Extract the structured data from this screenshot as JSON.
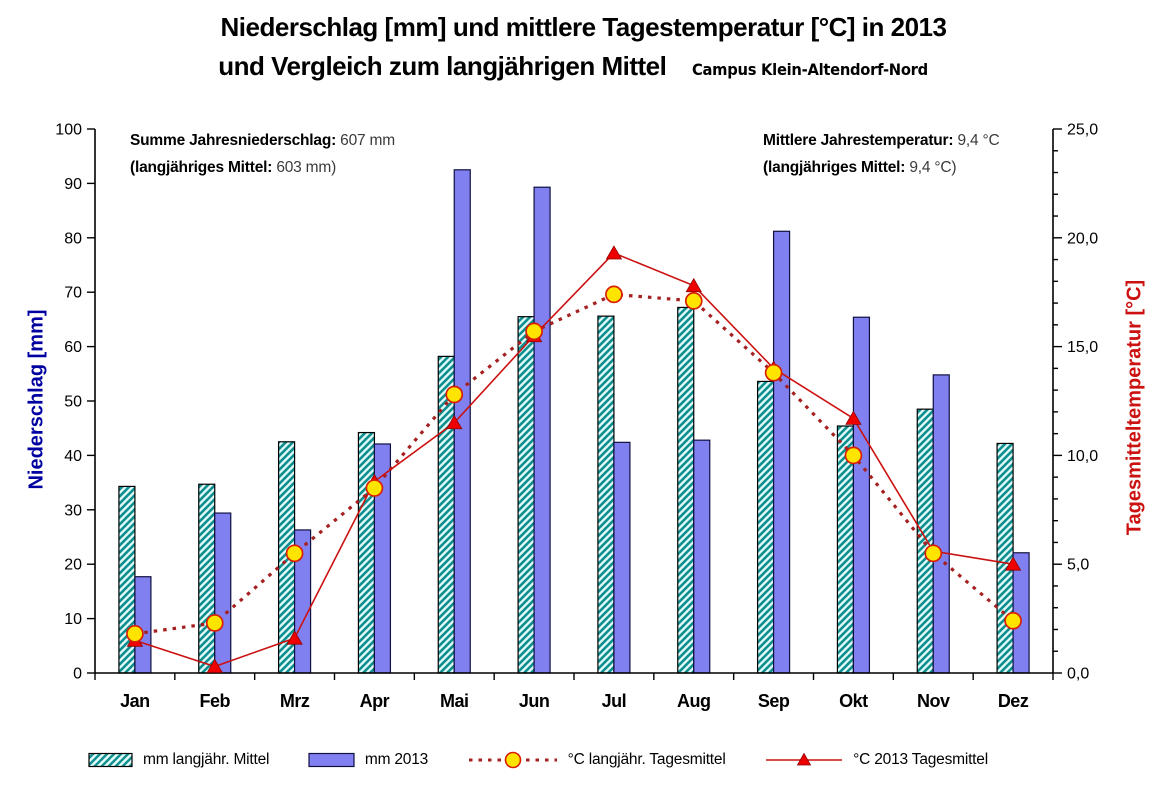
{
  "title": {
    "line1": "Niederschlag [mm] und mittlere Tagestemperatur [°C] in 2013",
    "line2": "und Vergleich zum langjährigen Mittel",
    "site": "Campus Klein-Altendorf-Nord"
  },
  "annotations": {
    "precip_label": "Summe Jahresniederschlag:",
    "precip_value": "607 mm",
    "precip_mean_label": "(langjähriges Mittel:",
    "precip_mean_value": "603 mm)",
    "temp_label": "Mittlere Jahrestemperatur:",
    "temp_value": "9,4 °C",
    "temp_mean_label": "(langjähriges Mittel:",
    "temp_mean_value": "9,4 °C)"
  },
  "axes": {
    "left_label": "Niederschlag [mm]",
    "right_label": "Tagesmitteltemperatur [°C]"
  },
  "legend": {
    "items": [
      {
        "label": "mm langjähr. Mittel",
        "swatch": "hatched-bar"
      },
      {
        "label": "mm 2013",
        "swatch": "blue-bar"
      },
      {
        "label": "°C langjähr. Tagesmittel",
        "swatch": "dotted-line-yellow-circle"
      },
      {
        "label": "°C 2013 Tagesmittel",
        "swatch": "solid-line-red-triangle"
      }
    ]
  },
  "colors": {
    "bar_2013_fill": "#8080f0",
    "bar_2013_border": "#101040",
    "hatch_bg": "#e4fbfb",
    "hatch_stroke": "#0f8f8f",
    "hatch_border": "#000000",
    "line_longterm": "#a52020",
    "marker_longterm_fill": "#ffe400",
    "marker_longterm_stroke": "#d82000",
    "line_2013": "#cc1111",
    "marker_2013_fill": "#ee0000",
    "left_axis_label": "#0000a0",
    "right_axis_label": "#cc1111"
  },
  "chart_data": {
    "type": "bar+line combo (dual axis)",
    "title": "Niederschlag [mm] und mittlere Tagestemperatur [°C] in 2013 und Vergleich zum langjährigen Mittel",
    "categories": [
      "Jan",
      "Feb",
      "Mrz",
      "Apr",
      "Mai",
      "Jun",
      "Jul",
      "Aug",
      "Sep",
      "Okt",
      "Nov",
      "Dez"
    ],
    "series": [
      {
        "name": "mm langjähr. Mittel",
        "type": "bar",
        "style": "teal-hatched",
        "values": [
          34.3,
          34.7,
          42.5,
          44.2,
          58.2,
          65.5,
          65.6,
          67.2,
          53.6,
          45.4,
          48.5,
          42.2
        ]
      },
      {
        "name": "mm 2013",
        "type": "bar",
        "style": "solid-blue",
        "values": [
          17.7,
          29.4,
          26.3,
          42.1,
          92.5,
          89.3,
          42.4,
          42.8,
          81.2,
          65.4,
          54.8,
          22.1
        ]
      },
      {
        "name": "°C langjähr. Tagesmittel",
        "type": "line",
        "style": "dotted-red-yellow-circle",
        "values": [
          1.8,
          2.3,
          5.5,
          8.5,
          12.8,
          15.7,
          17.4,
          17.1,
          13.8,
          10.0,
          5.5,
          2.4
        ]
      },
      {
        "name": "°C 2013 Tagesmittel",
        "type": "line",
        "style": "solid-red-triangle",
        "values": [
          1.5,
          0.3,
          1.6,
          8.8,
          11.5,
          15.5,
          19.3,
          17.8,
          14.0,
          11.7,
          5.6,
          5.0
        ]
      }
    ],
    "left_axis": {
      "label": "Niederschlag [mm]",
      "min": 0,
      "max": 100,
      "step": 10,
      "tick_labels": [
        "0",
        "10",
        "20",
        "30",
        "40",
        "50",
        "60",
        "70",
        "80",
        "90",
        "100"
      ]
    },
    "right_axis": {
      "label": "Tagesmitteltemperatur [°C]",
      "min": 0,
      "max": 25,
      "step": 5,
      "minor_step": 1,
      "tick_labels": [
        "0,0",
        "5,0",
        "10,0",
        "15,0",
        "20,0",
        "25,0"
      ]
    },
    "grid": false,
    "legend_position": "bottom"
  }
}
